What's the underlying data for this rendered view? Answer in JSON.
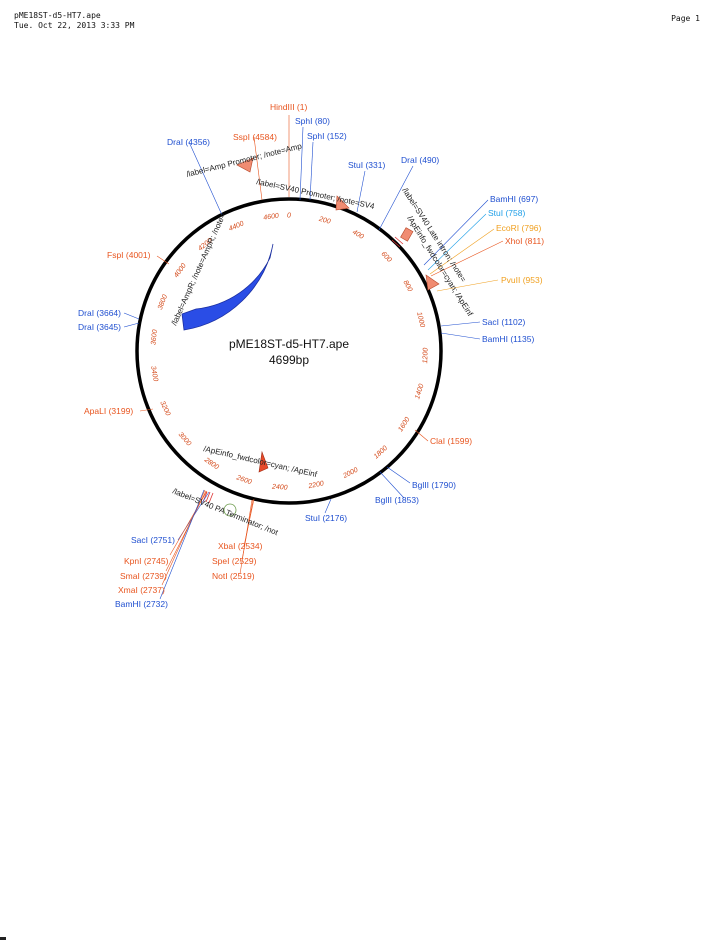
{
  "header": {
    "filename": "pME18ST-d5-HT7.ape",
    "datetime": "Tue. Oct 22, 2013 3:33 PM",
    "page": "Page 1"
  },
  "plasmid": {
    "name": "pME18ST-d5-HT7.ape",
    "length_label": "4699bp",
    "length": 4699
  },
  "colors": {
    "blue": "#1f4fd0",
    "cyan": "#1e9fe8",
    "orange": "#e8551f",
    "amber": "#f0a020",
    "feature_salmon": "#f08c72",
    "ampr_blue": "#2a4de6",
    "backbone": "#000000"
  },
  "ticks": [
    "0",
    "200",
    "400",
    "600",
    "800",
    "1000",
    "1200",
    "1400",
    "1600",
    "1800",
    "2000",
    "2200",
    "2400",
    "2600",
    "2800",
    "3000",
    "3200",
    "3400",
    "3600",
    "3800",
    "4000",
    "4200",
    "4400",
    "4600"
  ],
  "sites": [
    {
      "label": "HindIII (1)",
      "pos": 1,
      "color": "orange"
    },
    {
      "label": "SphI (80)",
      "pos": 80,
      "color": "blue"
    },
    {
      "label": "SphI (152)",
      "pos": 152,
      "color": "blue"
    },
    {
      "label": "StuI (331)",
      "pos": 331,
      "color": "blue"
    },
    {
      "label": "DraI (490)",
      "pos": 490,
      "color": "blue"
    },
    {
      "label": "BamHI (697)",
      "pos": 697,
      "color": "blue"
    },
    {
      "label": "StuI (758)",
      "pos": 758,
      "color": "cyan"
    },
    {
      "label": "EcoRI (796)",
      "pos": 796,
      "color": "amber"
    },
    {
      "label": "XhoI (811)",
      "pos": 811,
      "color": "orange"
    },
    {
      "label": "PvuII (953)",
      "pos": 953,
      "color": "amber"
    },
    {
      "label": "SacI (1102)",
      "pos": 1102,
      "color": "blue"
    },
    {
      "label": "BamHI (1135)",
      "pos": 1135,
      "color": "blue"
    },
    {
      "label": "ClaI (1599)",
      "pos": 1599,
      "color": "orange"
    },
    {
      "label": "BglII (1790)",
      "pos": 1790,
      "color": "blue"
    },
    {
      "label": "BglII (1853)",
      "pos": 1853,
      "color": "blue"
    },
    {
      "label": "StuI (2176)",
      "pos": 2176,
      "color": "blue"
    },
    {
      "label": "XbaI (2534)",
      "pos": 2534,
      "color": "orange"
    },
    {
      "label": "SpeI (2529)",
      "pos": 2529,
      "color": "orange"
    },
    {
      "label": "NotI (2519)",
      "pos": 2519,
      "color": "orange"
    },
    {
      "label": "SacI (2751)",
      "pos": 2751,
      "color": "blue"
    },
    {
      "label": "KpnI (2745)",
      "pos": 2745,
      "color": "orange"
    },
    {
      "label": "SmaI (2739)",
      "pos": 2739,
      "color": "orange"
    },
    {
      "label": "XmaI (2737)",
      "pos": 2737,
      "color": "orange"
    },
    {
      "label": "BamHI (2732)",
      "pos": 2732,
      "color": "blue"
    },
    {
      "label": "ApaLI (3199)",
      "pos": 3199,
      "color": "orange"
    },
    {
      "label": "DraI (3645)",
      "pos": 3645,
      "color": "blue"
    },
    {
      "label": "DraI (3664)",
      "pos": 3664,
      "color": "blue"
    },
    {
      "label": "FspI (4001)",
      "pos": 4001,
      "color": "orange"
    },
    {
      "label": "DraI (4356)",
      "pos": 4356,
      "color": "blue"
    },
    {
      "label": "SspI (4584)",
      "pos": 4584,
      "color": "orange"
    }
  ],
  "features": [
    {
      "label": "/label=Amp Promoter; /note=Amp"
    },
    {
      "label": "/label=SV40 Promoter; /note=SV4"
    },
    {
      "label": "/label=SV40 Late intron; /note="
    },
    {
      "label": "/ApEinfo_fwdcolor=cyan; /ApEinf"
    },
    {
      "label": "/label=AmpR; /note=AmpR; /note="
    },
    {
      "label": "/ApEinfo_fwdcolor=cyan; /ApEinf"
    },
    {
      "label": "/label=SV40 PA Terminator; /not"
    }
  ]
}
